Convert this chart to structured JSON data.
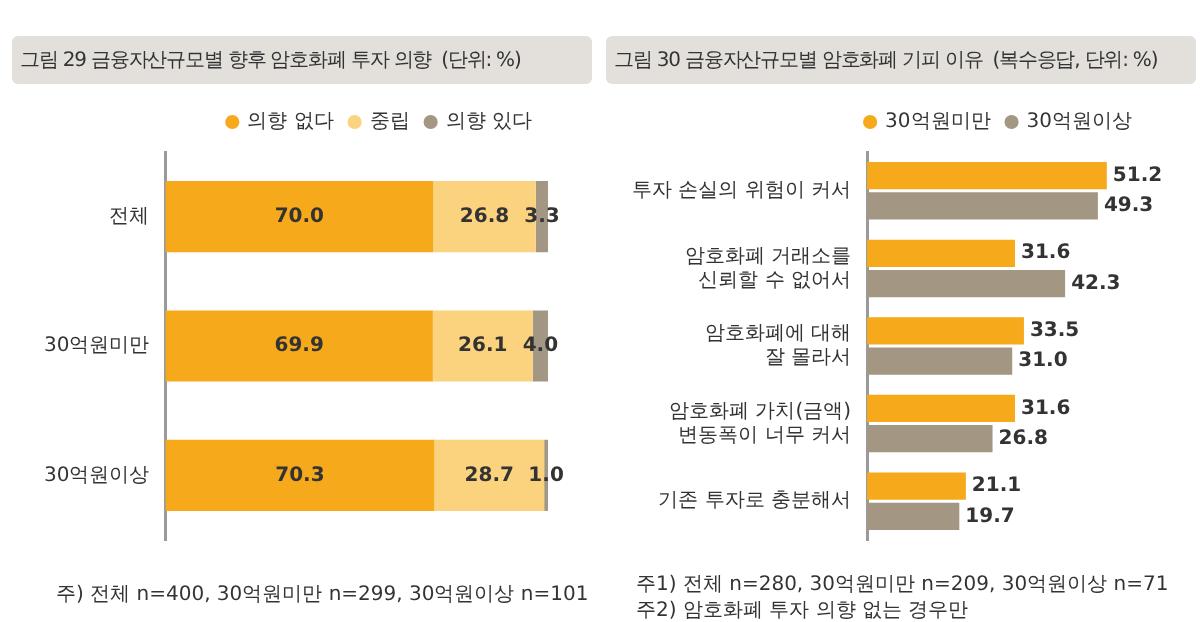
{
  "chart_data": [
    {
      "type": "bar",
      "orientation": "horizontal",
      "stacked": true,
      "title": "그림 29  금융자산규모별 향후 암호화폐 투자 의향",
      "subtitle": "(단위: %)",
      "categories": [
        "전체",
        "30억원미만",
        "30억원이상"
      ],
      "series": [
        {
          "name": "의향 없다",
          "color": "#f5a91b",
          "values": [
            70.0,
            69.9,
            70.3
          ],
          "value_labels": [
            "70.0",
            "69.9",
            "70.3"
          ]
        },
        {
          "name": "중립",
          "color": "#fbd27e",
          "values": [
            26.8,
            26.1,
            28.7
          ],
          "value_labels": [
            "26.8",
            "26.1",
            "28.7"
          ]
        },
        {
          "name": "의향 있다",
          "color": "#a39683",
          "values": [
            3.3,
            4.0,
            1.0
          ],
          "value_labels": [
            "3.3",
            "4.0",
            "1.0"
          ]
        }
      ],
      "xlim": [
        0,
        100
      ],
      "tick_labels": "y",
      "grid": false,
      "legend": "top right",
      "annotations": [
        "주) 전체 n=400, 30억원미만 n=299, 30억원이상 n=101"
      ]
    },
    {
      "type": "bar",
      "orientation": "horizontal",
      "title": "그림 30  금융자산규모별 암호화폐 기피 이유",
      "subtitle": "(복수응답, 단위: %)",
      "categories": [
        "투자 손실의 위험이 커서",
        "암호화폐 거래소를\n신뢰할 수 없어서",
        "암호화폐에 대해\n잘 몰라서",
        "암호화폐 가치(금액)\n변동폭이 너무 커서",
        "기존 투자로 충분해서"
      ],
      "series": [
        {
          "name": "30억원미만",
          "color": "#f5a91b",
          "values": [
            51.2,
            31.6,
            33.5,
            31.6,
            21.1
          ]
        },
        {
          "name": "30억원이상",
          "color": "#a39683",
          "values": [
            49.3,
            42.3,
            31.0,
            26.8,
            19.7
          ],
          "value_labels": [
            "49.3",
            "42.3",
            "31.0",
            "26.8",
            "19.7"
          ]
        }
      ],
      "tick_labels": "y",
      "grid": false,
      "legend": "top right",
      "data_labels": true,
      "annotations": [
        "주1) 전체 n=280, 30억원미만 n=209, 30억원이상 n=71",
        "주2) 암호화폐 투자 의향 없는 경우만"
      ]
    }
  ]
}
